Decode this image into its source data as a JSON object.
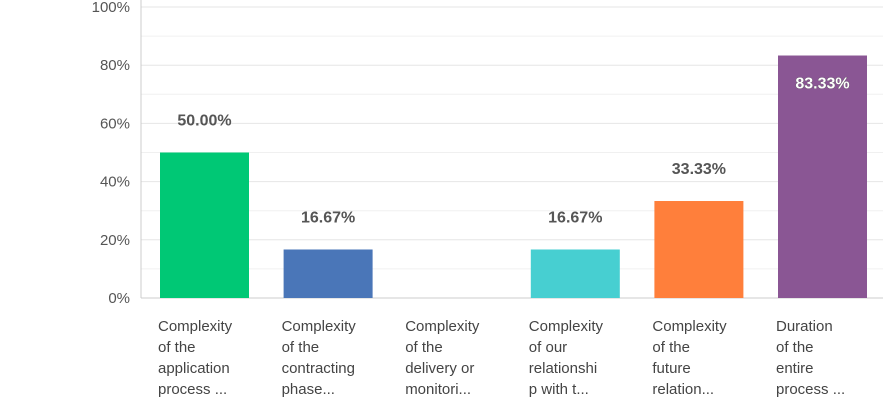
{
  "chart_data": {
    "type": "bar",
    "categories": [
      [
        "Complexity",
        "of the",
        "application",
        "process ..."
      ],
      [
        "Complexity",
        "of the",
        "contracting",
        "phase..."
      ],
      [
        "Complexity",
        "of the",
        "delivery or",
        "monitori..."
      ],
      [
        "Complexity",
        "of our",
        "relationshi",
        "p with t..."
      ],
      [
        "Complexity",
        "of the",
        "future",
        "relation..."
      ],
      [
        "Duration",
        "of the",
        "entire",
        "process ..."
      ]
    ],
    "values": [
      50.0,
      16.67,
      0,
      16.67,
      33.33,
      83.33
    ],
    "data_labels": [
      "50.00%",
      "16.67%",
      "",
      "16.67%",
      "33.33%",
      "83.33%"
    ],
    "colors": [
      "#00c875",
      "#4a76b8",
      "#999999",
      "#47cfd1",
      "#ff7f3b",
      "#8a5694"
    ],
    "yticks": [
      "0%",
      "20%",
      "40%",
      "60%",
      "80%",
      "100%"
    ],
    "ylim": [
      0,
      100
    ],
    "grid": true,
    "title": "",
    "xlabel": "",
    "ylabel": ""
  }
}
